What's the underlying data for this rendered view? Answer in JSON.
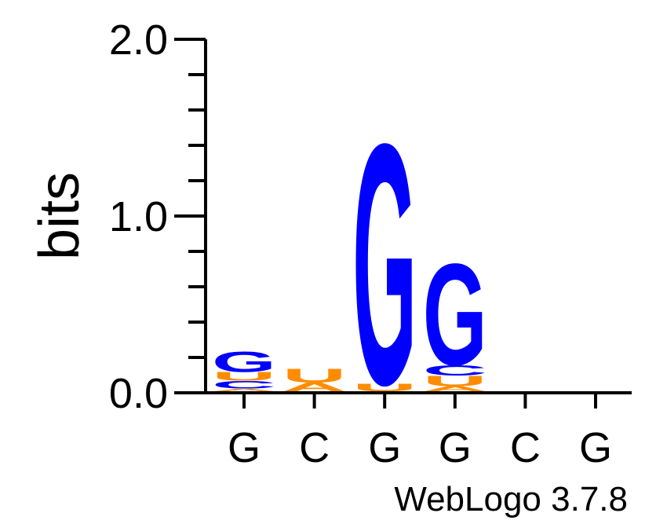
{
  "chart_data": {
    "type": "sequence-logo",
    "title": "",
    "ylabel": "bits",
    "ylim": [
      0,
      2.0
    ],
    "ytick_labels": [
      "0.0",
      "1.0",
      "2.0"
    ],
    "yticks": [
      0,
      1.0,
      2.0
    ],
    "minor_ytick_step": 0.2,
    "positions": [
      "G",
      "C",
      "G",
      "G",
      "C",
      "G"
    ],
    "colors": {
      "G": "#0000ff",
      "C": "#0000ff",
      "U": "#ff8c00",
      "A": "#ff8c00"
    },
    "stacks": [
      [
        {
          "letter": "A",
          "bits": 0.015
        },
        {
          "letter": "C",
          "bits": 0.045
        },
        {
          "letter": "U",
          "bits": 0.05
        },
        {
          "letter": "G",
          "bits": 0.12
        }
      ],
      [
        {
          "letter": "A",
          "bits": 0.05
        },
        {
          "letter": "U",
          "bits": 0.08
        }
      ],
      [
        {
          "letter": "U",
          "bits": 0.045
        },
        {
          "letter": "G",
          "bits": 1.42
        }
      ],
      [
        {
          "letter": "A",
          "bits": 0.03
        },
        {
          "letter": "U",
          "bits": 0.06
        },
        {
          "letter": "C",
          "bits": 0.06
        },
        {
          "letter": "G",
          "bits": 0.6
        }
      ],
      [],
      []
    ]
  },
  "footer": "WebLogo 3.7.8"
}
